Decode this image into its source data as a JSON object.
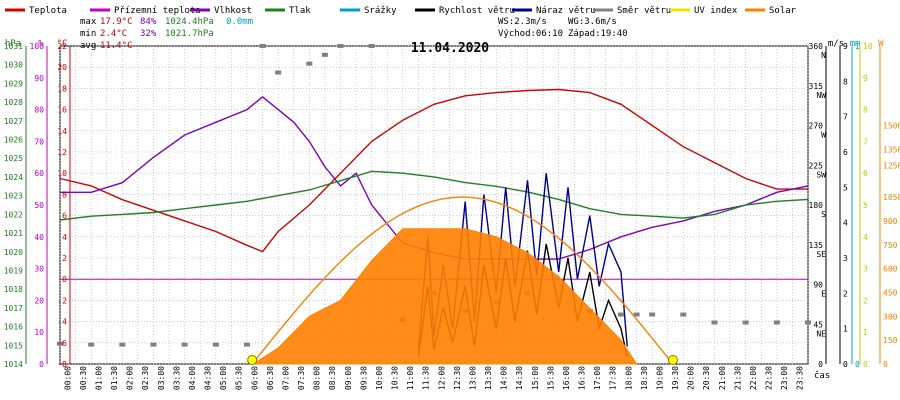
{
  "legend": [
    {
      "label": "Teplota",
      "color": "#d40000"
    },
    {
      "label": "Přízemní teplota",
      "color": "#c000c0"
    },
    {
      "label": "Vlhkost",
      "color": "#8000c0"
    },
    {
      "label": "Tlak",
      "color": "#208020"
    },
    {
      "label": "Srážky",
      "color": "#00a0c0"
    },
    {
      "label": "Rychlost větru",
      "color": "#000000"
    },
    {
      "label": "Náraz větru",
      "color": "#00008b"
    },
    {
      "label": "Směr větru",
      "color": "#808080"
    },
    {
      "label": "UV index",
      "color": "#e8e800"
    },
    {
      "label": "Solar",
      "color": "#ff8000"
    }
  ],
  "stats": {
    "max_label": "max",
    "max_temp": "17.9°C",
    "max_hum": "84%",
    "max_press": "1024.4hPa",
    "max_rain": "0.0mm",
    "min_label": "min",
    "min_temp": "2.4°C",
    "min_hum": "32%",
    "min_press": "1021.7hPa",
    "avg_label": "avg",
    "avg_temp": "11.4°C",
    "ws": "WS:2.3m/s",
    "wg": "WG:3.6m/s",
    "sunrise": "Východ:06:10",
    "sunset": "Západ:19:40"
  },
  "chart_data": {
    "type": "line",
    "title": "11.04.2020",
    "axes": {
      "hpa": {
        "unit": "hPa",
        "range": [
          1014,
          1031
        ],
        "ticks": [
          "1031",
          "1030",
          "1029",
          "1028",
          "1027",
          "1026",
          "1025",
          "1024",
          "1023",
          "1022",
          "1021",
          "1020",
          "1019",
          "1018",
          "1017",
          "1016",
          "1015",
          "1014"
        ]
      },
      "pct": {
        "unit": "%",
        "range": [
          0,
          100
        ],
        "ticks": [
          "100",
          "90",
          "80",
          "70",
          "60",
          "50",
          "40",
          "30",
          "20",
          "10",
          "0"
        ]
      },
      "degc": {
        "unit": "°C",
        "range": [
          -8,
          22
        ],
        "ticks": [
          "22",
          "20",
          "18",
          "16",
          "14",
          "12",
          "10",
          "8",
          "6",
          "4",
          "2",
          "0",
          "-2",
          "-4",
          "-6",
          "-8"
        ]
      },
      "dir": {
        "range": [
          0,
          360
        ],
        "ticks": [
          {
            "v": "360",
            "d": "N"
          },
          {
            "v": "315",
            "d": "NW"
          },
          {
            "v": "270",
            "d": "W"
          },
          {
            "v": "225",
            "d": "SW"
          },
          {
            "v": "180",
            "d": "S"
          },
          {
            "v": "135",
            "d": "SE"
          },
          {
            "v": "90",
            "d": "E"
          },
          {
            "v": "45",
            "d": "NE"
          },
          {
            "v": "0",
            "d": ""
          }
        ]
      },
      "ms": {
        "unit": "m/s",
        "range": [
          0,
          9
        ],
        "ticks": [
          "9",
          "8",
          "7",
          "6",
          "5",
          "4",
          "3",
          "2",
          "1",
          "0"
        ]
      },
      "mm": {
        "unit": "mm",
        "range": [
          0,
          1
        ],
        "ticks": [
          "1",
          "0"
        ]
      },
      "uv": {
        "range": [
          0,
          10
        ],
        "ticks": [
          "10",
          "9",
          "8",
          "7",
          "6",
          "5",
          "4",
          "3",
          "2",
          "1",
          "0"
        ]
      },
      "wm2": {
        "unit": "W",
        "range": [
          0,
          2000
        ],
        "ticks": [
          "1500",
          "1350",
          "1250",
          "1050",
          "900",
          "750",
          "600",
          "450",
          "300",
          "150",
          "0"
        ]
      },
      "xlabel": "čas",
      "xticks": [
        "00:00",
        "00:30",
        "01:00",
        "01:30",
        "02:00",
        "02:30",
        "03:00",
        "03:30",
        "04:00",
        "04:30",
        "05:00",
        "05:30",
        "06:00",
        "06:30",
        "07:00",
        "07:30",
        "08:00",
        "08:30",
        "09:00",
        "09:30",
        "10:00",
        "10:30",
        "11:00",
        "11:30",
        "12:00",
        "12:30",
        "13:00",
        "13:30",
        "14:00",
        "14:30",
        "15:00",
        "15:30",
        "16:00",
        "16:30",
        "17:00",
        "17:30",
        "18:00",
        "18:30",
        "19:00",
        "19:30",
        "20:00",
        "20:30",
        "21:00",
        "21:30",
        "22:00",
        "22:30",
        "23:00",
        "23:30"
      ]
    },
    "series": [
      {
        "name": "Teplota",
        "unit": "°C",
        "color": "#d40000",
        "hours": [
          0,
          1,
          2,
          3,
          4,
          5,
          6,
          6.5,
          7,
          8,
          9,
          10,
          11,
          12,
          13,
          14,
          15,
          16,
          17,
          18,
          19,
          20,
          21,
          22,
          23,
          24
        ],
        "values": [
          9.5,
          8.8,
          7.5,
          6.5,
          5.5,
          4.5,
          3.2,
          2.6,
          4.5,
          7,
          10,
          13,
          15,
          16.5,
          17.3,
          17.6,
          17.8,
          17.9,
          17.6,
          16.5,
          14.5,
          12.5,
          11,
          9.5,
          8.5,
          8.5
        ]
      },
      {
        "name": "Přízemní teplota",
        "unit": "°C",
        "color": "#c000c0",
        "hours": [
          0,
          24
        ],
        "values": [
          0,
          0
        ]
      },
      {
        "name": "Vlhkost",
        "unit": "%",
        "color": "#8000c0",
        "hours": [
          0,
          1,
          2,
          3,
          4,
          5,
          6,
          6.5,
          7,
          7.5,
          8,
          8.5,
          9,
          9.5,
          10,
          11,
          12,
          13,
          14,
          15,
          16,
          17,
          18,
          19,
          20,
          21,
          22,
          23,
          24
        ],
        "values": [
          54,
          54,
          57,
          65,
          72,
          76,
          80,
          84,
          80,
          76,
          70,
          62,
          56,
          60,
          50,
          38,
          35,
          33,
          33,
          33,
          33,
          36,
          40,
          43,
          45,
          48,
          50,
          54,
          56
        ]
      },
      {
        "name": "Tlak",
        "unit": "hPa",
        "color": "#208020",
        "hours": [
          0,
          1,
          2,
          3,
          4,
          5,
          6,
          7,
          8,
          9,
          10,
          11,
          12,
          13,
          14,
          15,
          16,
          17,
          18,
          19,
          20,
          21,
          22,
          23,
          24
        ],
        "values": [
          1021.7,
          1021.9,
          1022.0,
          1022.1,
          1022.3,
          1022.5,
          1022.7,
          1023.0,
          1023.3,
          1023.8,
          1024.3,
          1024.2,
          1024.0,
          1023.7,
          1023.5,
          1023.2,
          1022.8,
          1022.3,
          1022.0,
          1021.9,
          1021.8,
          1022.0,
          1022.5,
          1022.7,
          1022.8
        ]
      },
      {
        "name": "Srážky",
        "unit": "mm",
        "color": "#00a0c0",
        "hours": [
          0,
          24
        ],
        "values": [
          0,
          0
        ]
      },
      {
        "name": "Rychlost větru",
        "unit": "m/s",
        "color": "#000000",
        "hours": [
          11.5,
          11.8,
          12,
          12.3,
          12.6,
          13,
          13.3,
          13.6,
          14,
          14.3,
          14.6,
          15,
          15.3,
          15.6,
          16,
          16.3,
          16.6,
          17,
          17.3,
          17.6,
          18,
          18.2
        ],
        "values": [
          0.2,
          2.2,
          0.4,
          1.6,
          0.6,
          2.2,
          0.5,
          2.8,
          1.0,
          3.0,
          1.2,
          3.2,
          1.4,
          3.4,
          1.6,
          3.0,
          1.2,
          2.6,
          1.0,
          1.8,
          1.0,
          0.2
        ]
      },
      {
        "name": "Náraz větru",
        "unit": "m/s",
        "color": "#00008b",
        "hours": [
          11.5,
          11.8,
          12,
          12.3,
          12.6,
          13,
          13.3,
          13.6,
          14,
          14.3,
          14.6,
          15,
          15.3,
          15.6,
          16,
          16.3,
          16.6,
          17,
          17.3,
          17.6,
          18,
          18.2
        ],
        "values": [
          0.4,
          3.6,
          0.8,
          2.8,
          1.0,
          4.6,
          1.2,
          4.8,
          2.0,
          5.0,
          2.2,
          5.2,
          2.5,
          5.4,
          2.6,
          5.0,
          2.4,
          4.2,
          2.2,
          3.4,
          2.6,
          0.5
        ]
      },
      {
        "name": "Směr větru",
        "unit": "°",
        "color": "#808080",
        "hours": [
          0,
          1,
          2,
          3,
          4,
          5,
          6,
          6.5,
          7,
          8,
          8.5,
          9,
          10,
          11,
          12,
          13,
          14,
          15,
          16,
          17,
          18,
          18.5,
          19,
          20,
          21,
          22,
          23,
          24
        ],
        "values": [
          23,
          22,
          22,
          22,
          22,
          22,
          22,
          360,
          330,
          340,
          350,
          360,
          360,
          50,
          80,
          60,
          70,
          80,
          70,
          60,
          56,
          56,
          56,
          56,
          47,
          47,
          47,
          47
        ]
      },
      {
        "name": "UV index",
        "color": "#e8e800",
        "hours": [
          0,
          24
        ],
        "values": [
          0,
          0
        ]
      },
      {
        "name": "Solar",
        "unit": "W",
        "color": "#ff8000",
        "hours": [
          6.2,
          7,
          8,
          9,
          10,
          11,
          12,
          13,
          14,
          15,
          16,
          17,
          18,
          18.5
        ],
        "values": [
          0,
          100,
          300,
          400,
          650,
          850,
          850,
          850,
          800,
          700,
          550,
          350,
          150,
          0
        ]
      }
    ],
    "sun_markers": [
      "06:10",
      "19:40"
    ]
  }
}
